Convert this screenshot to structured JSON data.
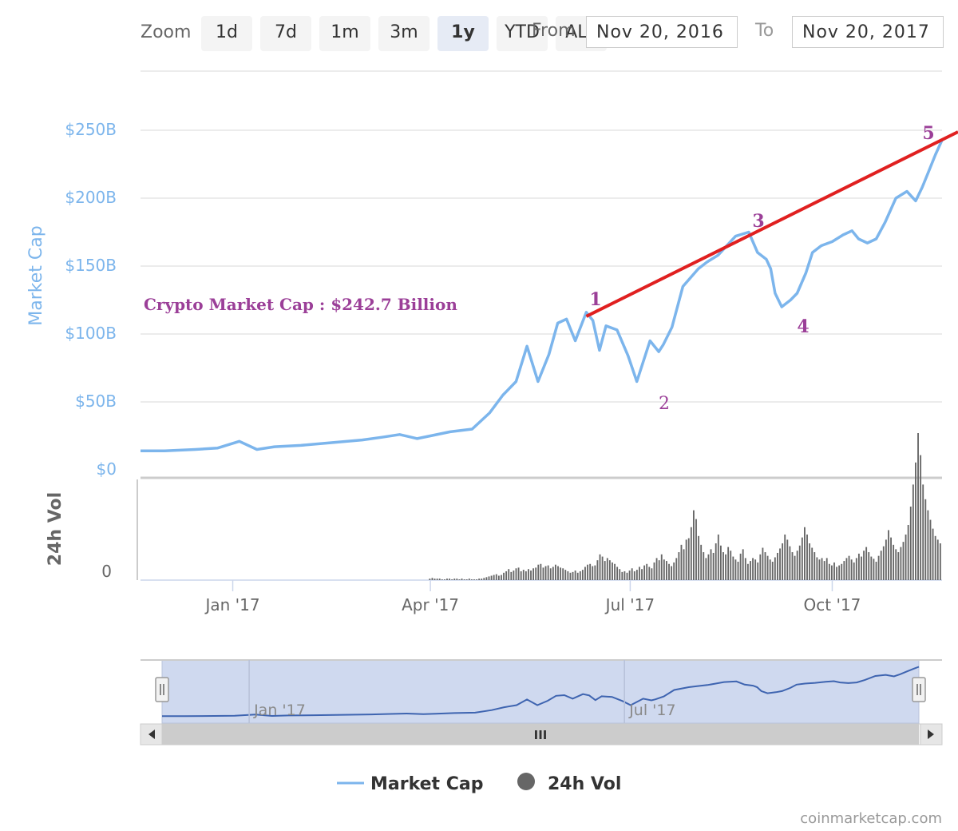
{
  "range_selector": {
    "zoom_label": "Zoom",
    "buttons": [
      "1d",
      "7d",
      "1m",
      "3m",
      "1y",
      "YTD",
      "ALL"
    ],
    "active": "1y",
    "from_label": "From",
    "from_value": "Nov 20, 2016",
    "to_label": "To",
    "to_value": "Nov 20, 2017"
  },
  "chart_data": {
    "type": "line",
    "title": "",
    "annotation": "Crypto Market Cap : $242.7 Billion",
    "y_axis": {
      "label": "Market Cap",
      "ticks": [
        "$0",
        "$50B",
        "$100B",
        "$150B",
        "$200B",
        "$250B"
      ],
      "tick_values": [
        0,
        50,
        100,
        150,
        200,
        250
      ],
      "unit": "billion USD",
      "ylim": [
        0,
        300
      ]
    },
    "x_axis": {
      "ticks": [
        "Jan '17",
        "Apr '17",
        "Jul '17",
        "Oct '17"
      ],
      "tick_dates": [
        "2017-01-01",
        "2017-04-01",
        "2017-07-01",
        "2017-10-01"
      ],
      "range": [
        "2016-11-20",
        "2017-11-20"
      ]
    },
    "series": [
      {
        "name": "Market Cap",
        "color": "#7cb5ec",
        "x": [
          "2016-11-20",
          "2016-12-01",
          "2016-12-15",
          "2016-12-25",
          "2017-01-04",
          "2017-01-12",
          "2017-01-20",
          "2017-02-01",
          "2017-02-15",
          "2017-03-01",
          "2017-03-10",
          "2017-03-18",
          "2017-03-26",
          "2017-04-01",
          "2017-04-10",
          "2017-04-20",
          "2017-04-28",
          "2017-05-04",
          "2017-05-10",
          "2017-05-15",
          "2017-05-20",
          "2017-05-25",
          "2017-05-29",
          "2017-06-02",
          "2017-06-06",
          "2017-06-11",
          "2017-06-14",
          "2017-06-17",
          "2017-06-20",
          "2017-06-25",
          "2017-06-30",
          "2017-07-04",
          "2017-07-10",
          "2017-07-14",
          "2017-07-16",
          "2017-07-20",
          "2017-07-25",
          "2017-08-01",
          "2017-08-05",
          "2017-08-10",
          "2017-08-14",
          "2017-08-18",
          "2017-08-24",
          "2017-08-28",
          "2017-09-01",
          "2017-09-03",
          "2017-09-05",
          "2017-09-08",
          "2017-09-12",
          "2017-09-15",
          "2017-09-19",
          "2017-09-22",
          "2017-09-26",
          "2017-10-01",
          "2017-10-06",
          "2017-10-10",
          "2017-10-13",
          "2017-10-17",
          "2017-10-21",
          "2017-10-25",
          "2017-10-30",
          "2017-11-04",
          "2017-11-08",
          "2017-11-11",
          "2017-11-14",
          "2017-11-17",
          "2017-11-20"
        ],
        "values": [
          14,
          14,
          15,
          16,
          21,
          15,
          17,
          18,
          20,
          22,
          24,
          26,
          23,
          25,
          28,
          30,
          42,
          55,
          65,
          91,
          65,
          85,
          108,
          111,
          95,
          116,
          110,
          88,
          106,
          103,
          84,
          65,
          95,
          87,
          92,
          105,
          135,
          148,
          153,
          158,
          165,
          172,
          175,
          160,
          155,
          148,
          130,
          120,
          125,
          130,
          145,
          160,
          165,
          168,
          173,
          176,
          170,
          167,
          170,
          182,
          200,
          205,
          198,
          208,
          220,
          232,
          242.7
        ]
      },
      {
        "name": "24h Vol",
        "color": "#666666",
        "x_range": [
          "2016-11-20",
          "2017-11-20"
        ],
        "relative_values": [
          0,
          0,
          0,
          0,
          0,
          0,
          0,
          0,
          0,
          0,
          0,
          0,
          0,
          0,
          0,
          0,
          0,
          0,
          0,
          0,
          0,
          0,
          0,
          0,
          0,
          0,
          0,
          0,
          0,
          0,
          0,
          0,
          0,
          0,
          0,
          0,
          0,
          0,
          0,
          0,
          0,
          0,
          0,
          0,
          0,
          0,
          0,
          0,
          0,
          0,
          0,
          0,
          0,
          0,
          0,
          0,
          0,
          0,
          0,
          0,
          0,
          0,
          0,
          0,
          0,
          0,
          0,
          0,
          0,
          0,
          0,
          0,
          0,
          0,
          0,
          0,
          0,
          0,
          0,
          0,
          0,
          0,
          0,
          0,
          0,
          0,
          0,
          0,
          0,
          0,
          0,
          0,
          0,
          0,
          0,
          0,
          0,
          0,
          0,
          0,
          0,
          0,
          0,
          0,
          0,
          0,
          0,
          0,
          0,
          0,
          0,
          0,
          0,
          0,
          0,
          0,
          0,
          0.02,
          0.03,
          0.02,
          0.02,
          0.02,
          0.01,
          0.01,
          0.02,
          0.02,
          0.01,
          0.02,
          0.02,
          0.01,
          0.02,
          0.01,
          0.01,
          0.02,
          0.01,
          0.01,
          0.01,
          0.02,
          0.02,
          0.03,
          0.04,
          0.05,
          0.06,
          0.07,
          0.08,
          0.06,
          0.07,
          0.1,
          0.12,
          0.15,
          0.11,
          0.13,
          0.16,
          0.17,
          0.12,
          0.14,
          0.12,
          0.15,
          0.13,
          0.16,
          0.17,
          0.21,
          0.22,
          0.17,
          0.19,
          0.2,
          0.16,
          0.18,
          0.21,
          0.19,
          0.17,
          0.16,
          0.14,
          0.12,
          0.1,
          0.11,
          0.13,
          0.1,
          0.12,
          0.14,
          0.18,
          0.21,
          0.22,
          0.19,
          0.2,
          0.27,
          0.35,
          0.32,
          0.26,
          0.3,
          0.27,
          0.24,
          0.22,
          0.18,
          0.15,
          0.11,
          0.12,
          0.1,
          0.13,
          0.16,
          0.12,
          0.14,
          0.18,
          0.15,
          0.2,
          0.22,
          0.18,
          0.16,
          0.24,
          0.3,
          0.27,
          0.35,
          0.28,
          0.26,
          0.22,
          0.19,
          0.24,
          0.3,
          0.38,
          0.48,
          0.42,
          0.55,
          0.57,
          0.72,
          0.95,
          0.83,
          0.6,
          0.48,
          0.38,
          0.3,
          0.35,
          0.42,
          0.37,
          0.5,
          0.62,
          0.47,
          0.38,
          0.35,
          0.45,
          0.4,
          0.32,
          0.28,
          0.25,
          0.36,
          0.42,
          0.3,
          0.22,
          0.26,
          0.3,
          0.28,
          0.24,
          0.35,
          0.44,
          0.38,
          0.33,
          0.28,
          0.25,
          0.31,
          0.37,
          0.43,
          0.5,
          0.62,
          0.55,
          0.46,
          0.38,
          0.33,
          0.4,
          0.47,
          0.58,
          0.72,
          0.62,
          0.5,
          0.44,
          0.38,
          0.31,
          0.28,
          0.3,
          0.26,
          0.3,
          0.22,
          0.2,
          0.24,
          0.18,
          0.2,
          0.22,
          0.26,
          0.3,
          0.33,
          0.28,
          0.24,
          0.3,
          0.36,
          0.32,
          0.4,
          0.45,
          0.38,
          0.32,
          0.29,
          0.25,
          0.33,
          0.4,
          0.46,
          0.55,
          0.68,
          0.58,
          0.48,
          0.42,
          0.38,
          0.45,
          0.52,
          0.62,
          0.75,
          1.0,
          1.3,
          1.6,
          2.0,
          1.7,
          1.3,
          1.1,
          0.95,
          0.82,
          0.7,
          0.6,
          0.55,
          0.5
        ]
      }
    ],
    "wave_labels": [
      "1",
      "2",
      "3",
      "4",
      "5"
    ],
    "trend_line": {
      "color": "#e02020",
      "from": [
        "2017-06-11",
        113
      ],
      "to": [
        "2017-11-20",
        250
      ]
    },
    "vol_axis": {
      "label": "24h Vol",
      "ticks": [
        "0"
      ]
    },
    "grid": true,
    "legend": {
      "position": "bottom-center",
      "items": [
        "Market Cap",
        "24h Vol"
      ]
    }
  },
  "navigator": {
    "x_labels": [
      "Jan '17",
      "Jul '17"
    ],
    "scrollbar_grip": "III"
  },
  "credits": "coinmarketcap.com"
}
